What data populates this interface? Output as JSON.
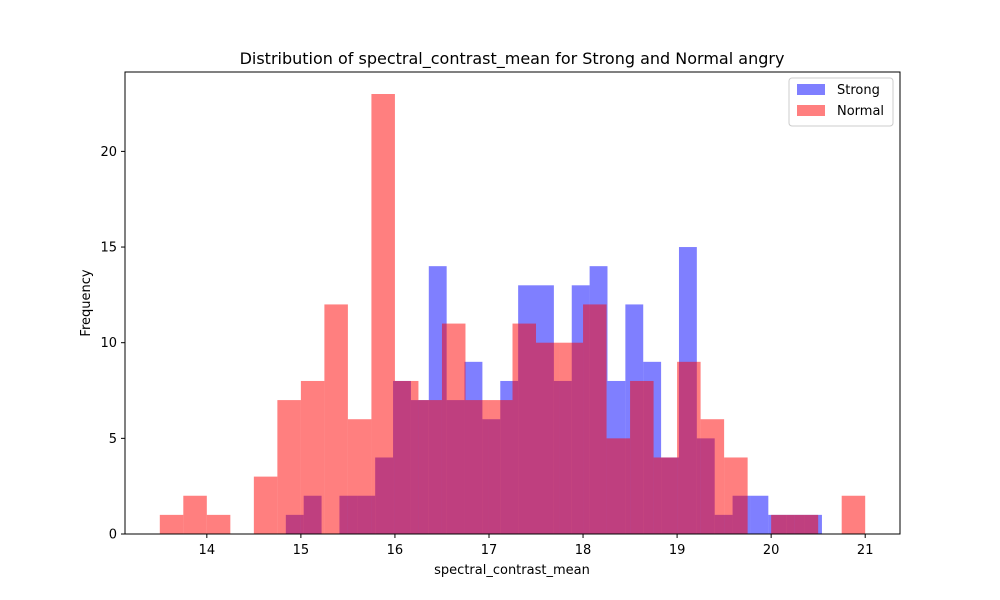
{
  "chart_data": {
    "type": "histogram",
    "title": "Distribution of spectral_contrast_mean for Strong and Normal angry",
    "xlabel": "spectral_contrast_mean",
    "ylabel": "Frequency",
    "xlim": [
      13.13,
      21.37
    ],
    "ylim": [
      0,
      24.15
    ],
    "xticks": [
      14,
      15,
      16,
      17,
      18,
      19,
      20,
      21
    ],
    "yticks": [
      0,
      5,
      10,
      15,
      20
    ],
    "legend": {
      "position": "top-right",
      "entries": [
        "Strong",
        "Normal"
      ]
    },
    "grid": false,
    "series": [
      {
        "name": "Strong",
        "color": "#0000ff",
        "opacity": 0.5,
        "bin_edges": [
          14.84,
          15.03,
          15.22,
          15.41,
          15.6,
          15.79,
          15.98,
          16.17,
          16.36,
          16.55,
          16.74,
          16.93,
          17.12,
          17.31,
          17.5,
          17.69,
          17.88,
          18.07,
          18.26,
          18.45,
          18.64,
          18.83,
          19.02,
          19.21,
          19.4,
          19.59,
          19.78,
          19.97,
          20.16,
          20.35,
          20.54
        ],
        "counts": [
          1,
          2,
          0,
          2,
          2,
          4,
          8,
          7,
          14,
          7,
          9,
          6,
          8,
          13,
          13,
          8,
          13,
          14,
          8,
          12,
          9,
          4,
          15,
          5,
          1,
          2,
          2,
          1,
          1,
          1
        ]
      },
      {
        "name": "Normal",
        "color": "#ff0000",
        "opacity": 0.5,
        "bin_edges": [
          13.5,
          13.75,
          14.0,
          14.25,
          14.5,
          14.75,
          15.0,
          15.25,
          15.5,
          15.75,
          16.0,
          16.25,
          16.5,
          16.75,
          17.0,
          17.25,
          17.5,
          17.75,
          18.0,
          18.25,
          18.5,
          18.75,
          19.0,
          19.25,
          19.5,
          19.75,
          20.0,
          20.25,
          20.5,
          20.75,
          21.0
        ],
        "counts": [
          1,
          2,
          1,
          0,
          3,
          7,
          8,
          12,
          6,
          23,
          8,
          7,
          11,
          7,
          7,
          11,
          10,
          10,
          12,
          5,
          8,
          4,
          9,
          6,
          4,
          0,
          1,
          1,
          0,
          2
        ]
      }
    ]
  }
}
